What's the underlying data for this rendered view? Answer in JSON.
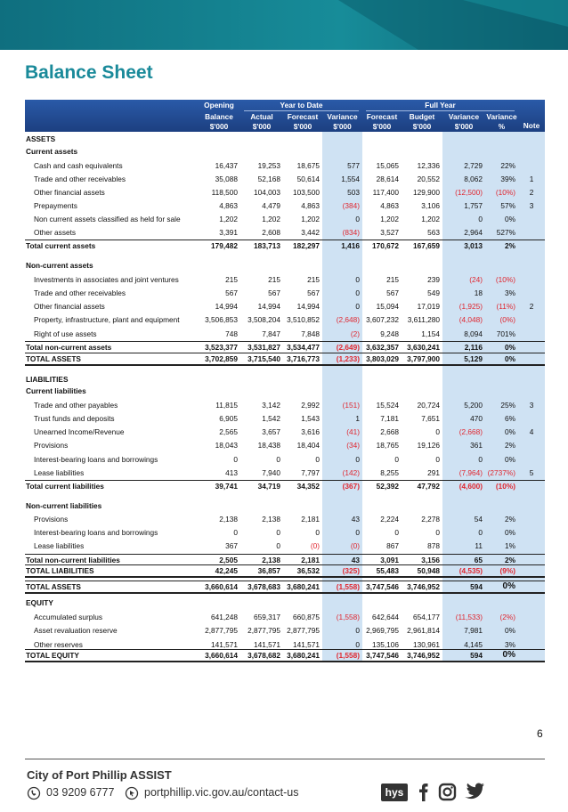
{
  "title": "Balance Sheet",
  "table": {
    "groups": [
      "Opening",
      "Year to Date",
      "Full Year"
    ],
    "columns": [
      [
        "Balance",
        "$'000"
      ],
      [
        "Actual",
        "$'000"
      ],
      [
        "Forecast",
        "$'000"
      ],
      [
        "Variance",
        "$'000"
      ],
      [
        "Forecast",
        "$'000"
      ],
      [
        "Budget",
        "$'000"
      ],
      [
        "Variance",
        "$'000"
      ],
      [
        "Variance",
        "%"
      ],
      [
        "Note"
      ]
    ],
    "rows": [
      [
        "ASSETS"
      ],
      [
        "Current assets"
      ],
      [
        "Cash and cash equivalents",
        "16,437",
        "19,253",
        "18,675",
        "577",
        "15,065",
        "12,336",
        "2,729",
        "22%"
      ],
      [
        "Trade and other receivables",
        "35,088",
        "52,168",
        "50,614",
        "1,554",
        "28,614",
        "20,552",
        "8,062",
        "39%",
        "1"
      ],
      [
        "Other financial assets",
        "118,500",
        "104,003",
        "103,500",
        "503",
        "117,400",
        "129,900",
        "(12,500)",
        "(10%)",
        "2"
      ],
      [
        "Prepayments",
        "4,863",
        "4,479",
        "4,863",
        "(384)",
        "4,863",
        "3,106",
        "1,757",
        "57%",
        "3"
      ],
      [
        "Non current assets classified as held for sale",
        "1,202",
        "1,202",
        "1,202",
        "0",
        "1,202",
        "1,202",
        "0",
        "0%"
      ],
      [
        "Other assets",
        "3,391",
        "2,608",
        "3,442",
        "(834)",
        "3,527",
        "563",
        "2,964",
        "527%"
      ],
      [
        "Total current assets",
        "179,482",
        "183,713",
        "182,297",
        "1,416",
        "170,672",
        "167,659",
        "3,013",
        "2%"
      ],
      [
        "Non-current assets"
      ],
      [
        "Investments in associates and joint ventures",
        "215",
        "215",
        "215",
        "0",
        "215",
        "239",
        "(24)",
        "(10%)"
      ],
      [
        "Trade and other receivables",
        "567",
        "567",
        "567",
        "0",
        "567",
        "549",
        "18",
        "3%"
      ],
      [
        "Other financial assets",
        "14,994",
        "14,994",
        "14,994",
        "0",
        "15,094",
        "17,019",
        "(1,925)",
        "(11%)",
        "2"
      ],
      [
        "Property, infrastructure, plant and equipment",
        "3,506,853",
        "3,508,204",
        "3,510,852",
        "(2,648)",
        "3,607,232",
        "3,611,280",
        "(4,048)",
        "(0%)"
      ],
      [
        "Right of use assets",
        "748",
        "7,847",
        "7,848",
        "(2)",
        "9,248",
        "1,154",
        "8,094",
        "701%"
      ],
      [
        "Total non-current assets",
        "3,523,377",
        "3,531,827",
        "3,534,477",
        "(2,649)",
        "3,632,357",
        "3,630,241",
        "2,116",
        "0%"
      ],
      [
        "TOTAL ASSETS",
        "3,702,859",
        "3,715,540",
        "3,716,773",
        "(1,233)",
        "3,803,029",
        "3,797,900",
        "5,129",
        "0%"
      ],
      [
        "LIABILITIES"
      ],
      [
        "Current liabilities"
      ],
      [
        "Trade and other payables",
        "11,815",
        "3,142",
        "2,992",
        "(151)",
        "15,524",
        "20,724",
        "5,200",
        "25%",
        "3"
      ],
      [
        "Trust funds and deposits",
        "6,905",
        "1,542",
        "1,543",
        "1",
        "7,181",
        "7,651",
        "470",
        "6%"
      ],
      [
        "Unearned Income/Revenue",
        "2,565",
        "3,657",
        "3,616",
        "(41)",
        "2,668",
        "0",
        "(2,668)",
        "0%",
        "4"
      ],
      [
        "Provisions",
        "18,043",
        "18,438",
        "18,404",
        "(34)",
        "18,765",
        "19,126",
        "361",
        "2%"
      ],
      [
        "Interest-bearing loans and borrowings",
        "0",
        "0",
        "0",
        "0",
        "0",
        "0",
        "0",
        "0%"
      ],
      [
        "Lease liabilities",
        "413",
        "7,940",
        "7,797",
        "(142)",
        "8,255",
        "291",
        "(7,964)",
        "(2737%)",
        "5"
      ],
      [
        "Total current liabilities",
        "39,741",
        "34,719",
        "34,352",
        "(367)",
        "52,392",
        "47,792",
        "(4,600)",
        "(10%)"
      ],
      [
        "Non-current liabilities"
      ],
      [
        "Provisions",
        "2,138",
        "2,138",
        "2,181",
        "43",
        "2,224",
        "2,278",
        "54",
        "2%"
      ],
      [
        "Interest-bearing loans and borrowings",
        "0",
        "0",
        "0",
        "0",
        "0",
        "0",
        "0",
        "0%"
      ],
      [
        "Lease liabilities",
        "367",
        "0",
        "(0)",
        "(0)",
        "867",
        "878",
        "11",
        "1%"
      ],
      [
        "Total non-current liabilities",
        "2,505",
        "2,138",
        "2,181",
        "43",
        "3,091",
        "3,156",
        "65",
        "2%"
      ],
      [
        "TOTAL LIABILITIES",
        "42,245",
        "36,857",
        "36,532",
        "(325)",
        "55,483",
        "50,948",
        "(4,535)",
        "(9%)"
      ],
      [
        "TOTAL ASSETS",
        "3,660,614",
        "3,678,683",
        "3,680,241",
        "(1,558)",
        "3,747,546",
        "3,746,952",
        "594",
        "0%"
      ],
      [
        "EQUITY"
      ],
      [
        "Accumulated surplus",
        "641,248",
        "659,317",
        "660,875",
        "(1,558)",
        "642,644",
        "654,177",
        "(11,533)",
        "(2%)"
      ],
      [
        "Asset revaluation reserve",
        "2,877,795",
        "2,877,795",
        "2,877,795",
        "0",
        "2,969,795",
        "2,961,814",
        "7,981",
        "0%"
      ],
      [
        "Other reserves",
        "141,571",
        "141,571",
        "141,571",
        "0",
        "135,106",
        "130,961",
        "4,145",
        "3%"
      ],
      [
        "TOTAL EQUITY",
        "3,660,614",
        "3,678,682",
        "3,680,241",
        "(1,558)",
        "3,747,546",
        "3,746,952",
        "594",
        "0%"
      ]
    ]
  },
  "page_number": "6",
  "footer": {
    "org": "City of Port Phillip ASSIST",
    "phone": "03 9209 6777",
    "url": "portphillip.vic.gov.au/contact-us",
    "badge": "hys"
  }
}
